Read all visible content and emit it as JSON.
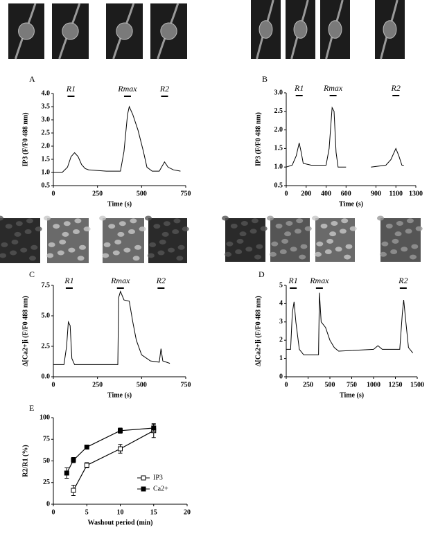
{
  "chart_data": [
    {
      "type": "line",
      "label": "A",
      "ylabel": "IP3 (F/F0 488 nm)",
      "xlabel": "Time (s)",
      "xlim": [
        0,
        750
      ],
      "xticks": [
        0,
        250,
        500,
        750
      ],
      "ylim": [
        0.5,
        4.0
      ],
      "yticks": [
        0.5,
        {
          "value": 1,
          "label": "1.0"
        },
        1.5,
        {
          "value": 2,
          "label": "2.0"
        },
        2.5,
        {
          "value": 3,
          "label": "3.0"
        },
        3.5,
        {
          "value": 4,
          "label": "4.0"
        }
      ],
      "annotations": [
        {
          "label": "R1",
          "x": 100
        },
        {
          "label": "Rmax",
          "x": 420
        },
        {
          "label": "R2",
          "x": 630
        }
      ],
      "series": [
        {
          "color": "#000000",
          "x": [
            0,
            50,
            80,
            100,
            120,
            140,
            160,
            180,
            200,
            300,
            380,
            400,
            420,
            430,
            450,
            480,
            510,
            530,
            560,
            600,
            630,
            650,
            680,
            720
          ],
          "values": [
            1.0,
            1.0,
            1.2,
            1.6,
            1.75,
            1.6,
            1.3,
            1.15,
            1.1,
            1.05,
            1.05,
            1.8,
            3.2,
            3.5,
            3.2,
            2.6,
            1.8,
            1.2,
            1.05,
            1.05,
            1.4,
            1.2,
            1.1,
            1.05
          ]
        }
      ]
    },
    {
      "type": "line",
      "label": "B",
      "ylabel": "IP3 (F/F0 488 nm)",
      "xlabel": "Time (s)",
      "xlim": [
        0,
        1300
      ],
      "xticks": [
        0,
        200,
        400,
        600,
        900,
        1100,
        1300
      ],
      "ylim": [
        0.5,
        3.0
      ],
      "yticks": [
        0.5,
        {
          "value": 1,
          "label": "1.0"
        },
        1.5,
        {
          "value": 2,
          "label": "2.0"
        },
        2.5,
        {
          "value": 3,
          "label": "3.0"
        }
      ],
      "annotations": [
        {
          "label": "R1",
          "x": 130
        },
        {
          "label": "Rmax",
          "x": 470
        },
        {
          "label": "R2",
          "x": 1100
        }
      ],
      "series": [
        {
          "color": "#000000",
          "x": [
            0,
            60,
            100,
            130,
            150,
            170,
            250,
            400,
            430,
            460,
            480,
            500,
            520,
            600,
            700,
            850,
            1000,
            1050,
            1100,
            1130,
            1160,
            1180
          ],
          "values": [
            1.0,
            1.05,
            1.3,
            1.65,
            1.4,
            1.1,
            1.05,
            1.05,
            1.5,
            2.6,
            2.5,
            1.4,
            1.0,
            1.0,
            null,
            1.0,
            1.05,
            1.2,
            1.5,
            1.3,
            1.05,
            1.05
          ]
        }
      ]
    },
    {
      "type": "line",
      "label": "C",
      "ylabel": "Δ[Ca2+]i (F/F0 488 nm)",
      "xlabel": "Time (s)",
      "xlim": [
        0,
        750
      ],
      "xticks": [
        0,
        250,
        500,
        750
      ],
      "ylim": [
        0,
        7.5
      ],
      "yticks": [
        {
          "value": 0,
          "label": "0.0"
        },
        2.5,
        {
          "value": 5,
          "label": "5.0"
        },
        7.5
      ],
      "annotations": [
        {
          "label": "R1",
          "x": 90
        },
        {
          "label": "Rmax",
          "x": 380
        },
        {
          "label": "R2",
          "x": 610
        }
      ],
      "series": [
        {
          "color": "#000000",
          "x": [
            0,
            60,
            75,
            85,
            95,
            105,
            120,
            300,
            365,
            370,
            380,
            400,
            430,
            450,
            470,
            500,
            550,
            600,
            610,
            620,
            660
          ],
          "values": [
            1.0,
            1.0,
            2.5,
            4.5,
            4.2,
            1.5,
            1.0,
            1.0,
            1.0,
            6.5,
            7.0,
            6.3,
            6.2,
            4.5,
            3.0,
            1.8,
            1.3,
            1.2,
            2.3,
            1.3,
            1.1
          ]
        }
      ]
    },
    {
      "type": "line",
      "label": "D",
      "ylabel": "Δ[Ca2+]i (F/F0 488 nm)",
      "xlabel": "Time (s)",
      "xlim": [
        0,
        1500
      ],
      "xticks": [
        0,
        250,
        500,
        750,
        1000,
        1250,
        1500
      ],
      "ylim": [
        0,
        5
      ],
      "yticks": [
        0,
        1,
        2,
        3,
        4,
        5
      ],
      "annotations": [
        {
          "label": "R1",
          "x": 80
        },
        {
          "label": "Rmax",
          "x": 380
        },
        {
          "label": "R2",
          "x": 1340
        }
      ],
      "series": [
        {
          "color": "#000000",
          "x": [
            0,
            50,
            70,
            90,
            110,
            150,
            200,
            370,
            380,
            400,
            450,
            500,
            550,
            600,
            1000,
            1050,
            1100,
            1300,
            1330,
            1345,
            1370,
            1400,
            1450
          ],
          "values": [
            1.5,
            1.5,
            3.5,
            4.1,
            3.0,
            1.5,
            1.2,
            1.2,
            4.6,
            3.0,
            2.7,
            2.0,
            1.6,
            1.4,
            1.5,
            1.7,
            1.5,
            1.5,
            3.5,
            4.2,
            3.0,
            1.6,
            1.3
          ]
        }
      ]
    },
    {
      "type": "errorline",
      "label": "E",
      "ylabel": "R2/R1 (%)",
      "xlabel": "Washout period (min)",
      "xlim": [
        0,
        20
      ],
      "xticks": [
        0,
        5,
        10,
        15,
        20
      ],
      "ylim": [
        0,
        100
      ],
      "yticks": [
        0,
        25,
        50,
        75,
        100
      ],
      "series": [
        {
          "name": "IP3",
          "color": "#000000",
          "marker": "open",
          "x": [
            3,
            5,
            10,
            15
          ],
          "values": [
            16,
            45,
            64,
            85
          ],
          "errors": [
            6,
            3,
            5,
            8
          ]
        },
        {
          "name": "Ca2+",
          "color": "#000000",
          "marker": "filled",
          "x": [
            2,
            3,
            5,
            10,
            15
          ],
          "values": [
            36,
            51,
            66,
            85,
            88
          ],
          "errors": [
            6,
            3,
            2,
            3,
            4
          ]
        }
      ]
    }
  ]
}
